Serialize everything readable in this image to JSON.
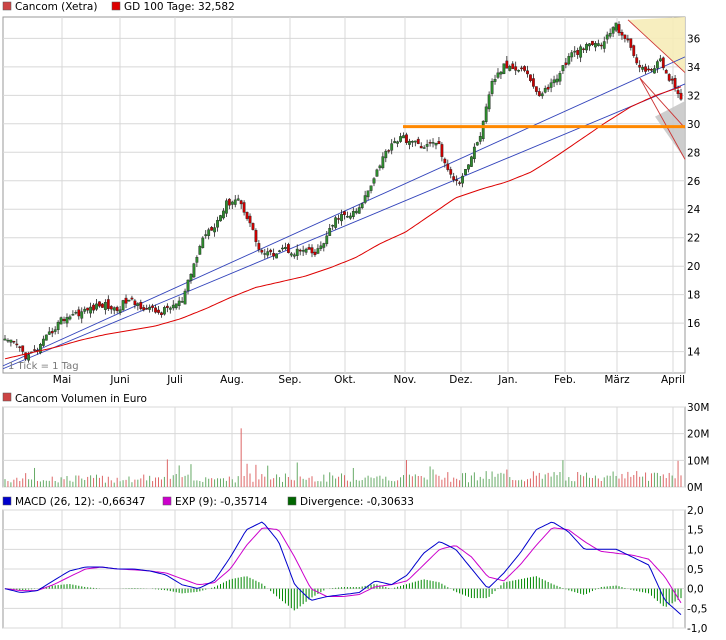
{
  "legend": {
    "price_series": "Cancom (Xetra)",
    "gd_label": "GD 100 Tage: 32,582",
    "volume_title": "Cancom Volumen in Euro",
    "macd_label": "MACD (26, 12): -0,66347",
    "exp_label": "EXP (9): -0,35714",
    "div_label": "Divergence: -0,30633",
    "tick_note": "1 Tick = 1 Tag"
  },
  "colors": {
    "price_up": "#2e8b2e",
    "price_down": "#cc0000",
    "gd_line": "#dd0000",
    "trend_line": "#3344bb",
    "support_line": "#ff8800",
    "macd": "#0000cc",
    "exp": "#cc00cc",
    "divergence": "#008800",
    "volume": "#cc4444"
  },
  "chart_data": [
    {
      "type": "candlestick",
      "title": "Cancom (Xetra)",
      "ylim": [
        12.5,
        37.5
      ],
      "y_ticks": [
        "14",
        "16",
        "18",
        "20",
        "22",
        "24",
        "26",
        "28",
        "30",
        "32",
        "34",
        "36"
      ],
      "x_tick_labels": [
        "Mai",
        "Juni",
        "Juli",
        "Aug.",
        "Sep.",
        "Okt.",
        "Nov.",
        "Dez.",
        "Jan.",
        "Feb.",
        "März",
        "April"
      ],
      "close_path": [
        14.7,
        14.5,
        13.6,
        14.2,
        15.2,
        16.2,
        16.6,
        16.8,
        17.1,
        17.3,
        16.9,
        17.6,
        17.3,
        17.0,
        16.7,
        17.2,
        17.5,
        20.0,
        22.3,
        23.0,
        24.4,
        24.8,
        23.3,
        21.0,
        20.8,
        21.3,
        21.0,
        21.1,
        20.8,
        22.0,
        23.5,
        23.5,
        24.0,
        25.8,
        27.5,
        28.8,
        29.0,
        28.6,
        28.4,
        28.8,
        26.5,
        26.0,
        27.5,
        29.5,
        33.0,
        34.0,
        34.0,
        33.8,
        32.0,
        32.5,
        33.5,
        34.8,
        35.2,
        35.6,
        35.6,
        37.0,
        36.0,
        34.4,
        33.5,
        34.5,
        33.2,
        31.5
      ],
      "gd_100": [
        13.5,
        13.9,
        14.3,
        14.8,
        15.2,
        15.5,
        15.8,
        16.3,
        17.0,
        17.8,
        18.5,
        18.9,
        19.3,
        19.9,
        20.6,
        21.6,
        22.4,
        23.6,
        24.8,
        25.4,
        25.9,
        26.6,
        27.7,
        28.9,
        30.1,
        31.2,
        32.0,
        32.6
      ],
      "support_level": 29.8,
      "gd_last": 32.582
    },
    {
      "type": "bar",
      "title": "Cancom Volumen in Euro",
      "ylim": [
        0,
        30
      ],
      "y_ticks": [
        "0M",
        "10M",
        "20M",
        "30M"
      ],
      "peak_value": 22
    },
    {
      "type": "line",
      "series": [
        {
          "name": "MACD (26, 12)",
          "last": -0.66347
        },
        {
          "name": "EXP (9)",
          "last": -0.35714
        },
        {
          "name": "Divergence",
          "last": -0.30633
        }
      ],
      "ylim": [
        -1.0,
        2.0
      ],
      "y_ticks": [
        "-1,0",
        "-0,5",
        "0,0",
        "0,5",
        "1,0",
        "1,5",
        "2,0"
      ],
      "macd_path": [
        0.0,
        -0.1,
        -0.05,
        0.2,
        0.45,
        0.55,
        0.55,
        0.5,
        0.5,
        0.45,
        0.35,
        0.1,
        0.0,
        0.2,
        0.8,
        1.5,
        1.7,
        1.2,
        0.1,
        -0.3,
        -0.2,
        -0.15,
        -0.1,
        0.2,
        0.1,
        0.35,
        0.9,
        1.2,
        1.0,
        0.5,
        0.0,
        0.4,
        0.9,
        1.5,
        1.7,
        1.45,
        1.0,
        1.0,
        1.0,
        0.8,
        0.6,
        -0.3,
        -0.66
      ],
      "exp_path": [
        0.0,
        -0.05,
        -0.05,
        0.1,
        0.3,
        0.5,
        0.55,
        0.5,
        0.48,
        0.45,
        0.4,
        0.25,
        0.1,
        0.15,
        0.5,
        1.1,
        1.55,
        1.5,
        0.8,
        0.0,
        -0.2,
        -0.2,
        -0.15,
        0.05,
        0.1,
        0.2,
        0.6,
        1.0,
        1.1,
        0.8,
        0.3,
        0.2,
        0.6,
        1.1,
        1.55,
        1.5,
        1.2,
        0.95,
        0.9,
        0.85,
        0.75,
        0.3,
        -0.36
      ]
    }
  ]
}
